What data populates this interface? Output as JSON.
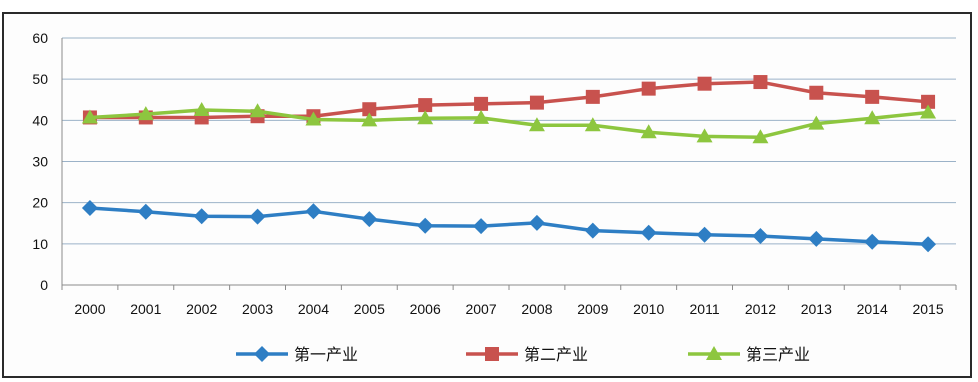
{
  "chart_data": {
    "type": "line",
    "title": "",
    "xlabel": "",
    "ylabel": "",
    "categories": [
      "2000",
      "2001",
      "2002",
      "2003",
      "2004",
      "2005",
      "2006",
      "2007",
      "2008",
      "2009",
      "2010",
      "2011",
      "2012",
      "2013",
      "2014",
      "2015"
    ],
    "ylim": [
      0,
      60
    ],
    "yticks": [
      0,
      10,
      20,
      30,
      40,
      50,
      60
    ],
    "grid": true,
    "legend_position": "bottom",
    "series": [
      {
        "name": "第一产业",
        "color": "#2e7ec4",
        "marker": "diamond",
        "values": [
          18.7,
          17.8,
          16.7,
          16.6,
          17.9,
          16.0,
          14.4,
          14.3,
          15.1,
          13.2,
          12.7,
          12.2,
          11.9,
          11.2,
          10.5,
          9.9
        ]
      },
      {
        "name": "第二产业",
        "color": "#c8524e",
        "marker": "square",
        "values": [
          40.7,
          40.7,
          40.7,
          41.0,
          41.0,
          42.7,
          43.7,
          44.0,
          44.3,
          45.7,
          47.7,
          48.9,
          49.3,
          46.7,
          45.7,
          44.5
        ]
      },
      {
        "name": "第三产业",
        "color": "#8dc63f",
        "marker": "triangle",
        "values": [
          40.7,
          41.5,
          42.5,
          42.2,
          40.2,
          40.0,
          40.5,
          40.6,
          38.8,
          38.8,
          37.1,
          36.1,
          35.9,
          39.2,
          40.5,
          41.9
        ]
      }
    ]
  }
}
